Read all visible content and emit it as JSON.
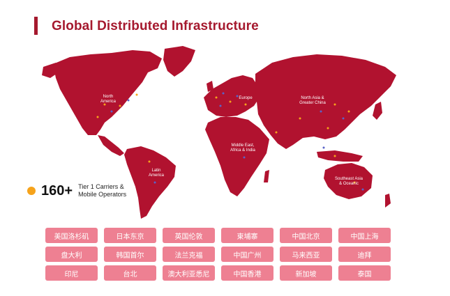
{
  "header": {
    "title": "Global Distributed Infrastructure"
  },
  "colors": {
    "brand": "#a5192e",
    "map_fill": "#b1122f",
    "button_fill": "#ee8092",
    "stat_dot": "#f6a31b",
    "marker_orange": "#f6a31b",
    "marker_blue": "#5a63c8"
  },
  "map": {
    "regions": [
      {
        "lines": [
          "North",
          "America"
        ]
      },
      {
        "lines": [
          "Europe"
        ]
      },
      {
        "lines": [
          "North Asia &",
          "Greater China"
        ]
      },
      {
        "lines": [
          "Middle East,",
          "Africa & India"
        ]
      },
      {
        "lines": [
          "Latin",
          "America"
        ]
      },
      {
        "lines": [
          "Southeast Asia",
          "& Oceanic"
        ]
      }
    ]
  },
  "stat": {
    "number": "160+",
    "line1": "Tier 1 Carriers &",
    "line2": "Mobile Operators"
  },
  "locations": [
    "美国洛杉矶",
    "日本东京",
    "英国伦敦",
    "柬埔寨",
    "中国北京",
    "中国上海",
    "盘大利",
    "韩国首尔",
    "法兰克福",
    "中国广州",
    "马来西亚",
    "迪拜",
    "印尼",
    "台北",
    "澳大利亚悉尼",
    "中国香港",
    "新加坡",
    "泰国"
  ]
}
